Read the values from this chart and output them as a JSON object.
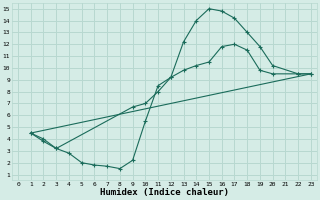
{
  "background_color": "#d5ece6",
  "grid_color": "#b8d8d0",
  "line_color": "#1a6b5a",
  "xlabel": "Humidex (Indice chaleur)",
  "xlim": [
    -0.5,
    23.5
  ],
  "ylim": [
    0.5,
    15.5
  ],
  "xticks": [
    0,
    1,
    2,
    3,
    4,
    5,
    6,
    7,
    8,
    9,
    10,
    11,
    12,
    13,
    14,
    15,
    16,
    17,
    18,
    19,
    20,
    21,
    22,
    23
  ],
  "yticks": [
    1,
    2,
    3,
    4,
    5,
    6,
    7,
    8,
    9,
    10,
    11,
    12,
    13,
    14,
    15
  ],
  "curve1_x": [
    1,
    2,
    3,
    4,
    5,
    6,
    7,
    8,
    9,
    10,
    11,
    12,
    13,
    14,
    15,
    16,
    17,
    18,
    19,
    20,
    22,
    23
  ],
  "curve1_y": [
    4.5,
    3.8,
    3.2,
    2.8,
    2.0,
    1.8,
    1.7,
    1.5,
    2.2,
    5.5,
    8.5,
    9.2,
    12.2,
    14.0,
    15.0,
    14.8,
    14.2,
    13.0,
    11.8,
    10.2,
    9.5,
    9.5
  ],
  "curve2_x": [
    1,
    2,
    3,
    9,
    10,
    11,
    12,
    13,
    14,
    15,
    16,
    17,
    18,
    19,
    20,
    22,
    23
  ],
  "curve2_y": [
    4.5,
    4.0,
    3.2,
    6.7,
    7.0,
    8.0,
    9.2,
    9.8,
    10.2,
    10.5,
    11.8,
    12.0,
    11.5,
    9.8,
    9.5,
    9.5,
    9.5
  ],
  "curve3_x": [
    1,
    23
  ],
  "curve3_y": [
    4.5,
    9.5
  ]
}
